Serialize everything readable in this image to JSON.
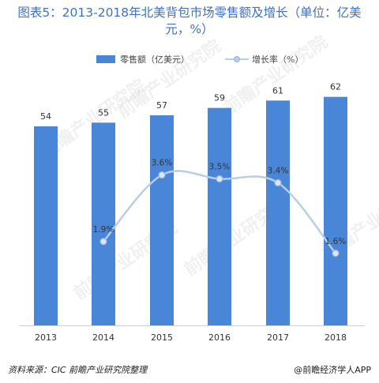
{
  "title": "图表5：2013-2018年北美背包市场零售额及增长（单位：亿美元，%）",
  "legend": {
    "bar_label": "零售额（亿美元）",
    "line_label": "增长率（%）"
  },
  "source": "资料来源：CIC 前瞻产业研究院整理",
  "credit": "@前瞻经济学人APP",
  "watermark": "前瞻产业研究院",
  "colors": {
    "bar": "#4a86d8",
    "line": "#b8cde8",
    "title": "#3b73c7"
  },
  "chart_data": {
    "type": "bar",
    "categories": [
      "2013",
      "2014",
      "2015",
      "2016",
      "2017",
      "2018"
    ],
    "series": [
      {
        "name": "零售额（亿美元）",
        "type": "bar",
        "values": [
          54,
          55,
          57,
          59,
          61,
          62
        ],
        "labels": [
          "54",
          "55",
          "57",
          "59",
          "61",
          "62"
        ]
      },
      {
        "name": "增长率（%）",
        "type": "line",
        "values": [
          null,
          1.9,
          3.6,
          3.5,
          3.4,
          1.6
        ],
        "labels": [
          "",
          "1.9%",
          "3.6%",
          "3.5%",
          "3.4%",
          "1.6%"
        ]
      }
    ]
  }
}
